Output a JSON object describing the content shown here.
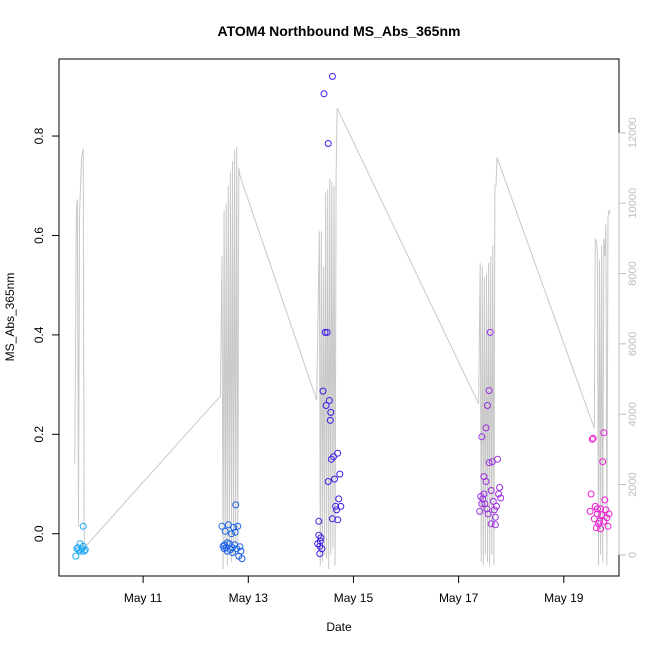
{
  "chart_data": {
    "type": "scatter",
    "title": "ATOM4 Northbound MS_Abs_365nm",
    "xlabel": "Date",
    "ylabel": "MS_Abs_365nm",
    "x_ticks": [
      "May 11",
      "May 13",
      "May 15",
      "May 17",
      "May 19"
    ],
    "x_tick_days": [
      11,
      13,
      15,
      17,
      19
    ],
    "xlim_days": [
      9.4,
      20.05
    ],
    "y_ticks": [
      "0.0",
      "0.2",
      "0.4",
      "0.6",
      "0.8"
    ],
    "y_tick_values": [
      0,
      0.2,
      0.4,
      0.6,
      0.8
    ],
    "ylim": [
      -0.085,
      0.955
    ],
    "y2_ticks": [
      "0",
      "2000",
      "4000",
      "6000",
      "8000",
      "10000",
      "12000"
    ],
    "y2_tick_values": [
      0,
      2000,
      4000,
      6000,
      8000,
      10000,
      12000
    ],
    "y2lim": [
      -600,
      14100
    ],
    "grid": false,
    "colors": {
      "series_1": "#1ea8f0",
      "series_2": "#1a62e8",
      "series_3": "#3c1ee6",
      "series_4": "#9a2ee0",
      "series_5": "#ee1ed2",
      "secondary_line": "#c8c8c8",
      "axis": "#000000",
      "secondary_axis": "#bdbdbd"
    },
    "series": [
      {
        "color_key": "series_1",
        "points": [
          [
            9.72,
            -0.045
          ],
          [
            9.74,
            -0.03
          ],
          [
            9.76,
            -0.028
          ],
          [
            9.78,
            -0.033
          ],
          [
            9.8,
            -0.02
          ],
          [
            9.82,
            -0.035
          ],
          [
            9.84,
            -0.03
          ],
          [
            9.86,
            0.015
          ],
          [
            9.86,
            -0.025
          ],
          [
            9.88,
            -0.035
          ],
          [
            9.9,
            -0.032
          ]
        ]
      },
      {
        "color_key": "series_2",
        "points": [
          [
            12.5,
            0.015
          ],
          [
            12.52,
            -0.025
          ],
          [
            12.54,
            -0.03
          ],
          [
            12.56,
            0.005
          ],
          [
            12.58,
            -0.028
          ],
          [
            12.6,
            -0.035
          ],
          [
            12.62,
            0.018
          ],
          [
            12.64,
            -0.02
          ],
          [
            12.66,
            -0.032
          ],
          [
            12.68,
            0.0
          ],
          [
            12.7,
            -0.038
          ],
          [
            12.72,
            0.013
          ],
          [
            12.74,
            -0.022
          ],
          [
            12.76,
            0.058
          ],
          [
            12.78,
            -0.03
          ],
          [
            12.8,
            0.015
          ],
          [
            12.82,
            -0.045
          ],
          [
            12.84,
            -0.026
          ],
          [
            12.86,
            -0.035
          ],
          [
            12.88,
            -0.05
          ],
          [
            12.55,
            -0.022
          ],
          [
            12.6,
            -0.018
          ],
          [
            12.7,
            -0.028
          ],
          [
            12.75,
            0.003
          ]
        ]
      },
      {
        "color_key": "series_3",
        "points": [
          [
            14.32,
            -0.02
          ],
          [
            14.34,
            0.025
          ],
          [
            14.36,
            -0.04
          ],
          [
            14.37,
            -0.015
          ],
          [
            14.38,
            -0.008
          ],
          [
            14.4,
            -0.03
          ],
          [
            14.42,
            0.287
          ],
          [
            14.44,
            0.885
          ],
          [
            14.46,
            0.405
          ],
          [
            14.48,
            0.258
          ],
          [
            14.5,
            0.405
          ],
          [
            14.52,
            0.785
          ],
          [
            14.52,
            0.105
          ],
          [
            14.54,
            0.268
          ],
          [
            14.56,
            0.228
          ],
          [
            14.57,
            0.244
          ],
          [
            14.58,
            0.15
          ],
          [
            14.6,
            0.92
          ],
          [
            14.6,
            0.03
          ],
          [
            14.62,
            0.155
          ],
          [
            14.64,
            0.11
          ],
          [
            14.66,
            0.055
          ],
          [
            14.68,
            0.048
          ],
          [
            14.7,
            0.162
          ],
          [
            14.72,
            0.07
          ],
          [
            14.74,
            0.12
          ],
          [
            14.76,
            0.055
          ],
          [
            14.7,
            0.028
          ],
          [
            14.34,
            -0.003
          ],
          [
            14.36,
            -0.025
          ]
        ]
      },
      {
        "color_key": "series_4",
        "points": [
          [
            17.4,
            0.045
          ],
          [
            17.42,
            0.075
          ],
          [
            17.44,
            0.195
          ],
          [
            17.46,
            0.07
          ],
          [
            17.48,
            0.115
          ],
          [
            17.5,
            0.06
          ],
          [
            17.52,
            0.213
          ],
          [
            17.54,
            0.05
          ],
          [
            17.56,
            0.04
          ],
          [
            17.58,
            0.143
          ],
          [
            17.6,
            0.405
          ],
          [
            17.62,
            0.087
          ],
          [
            17.64,
            0.145
          ],
          [
            17.66,
            0.065
          ],
          [
            17.68,
            0.048
          ],
          [
            17.7,
            0.033
          ],
          [
            17.72,
            0.055
          ],
          [
            17.74,
            0.15
          ],
          [
            17.76,
            0.08
          ],
          [
            17.78,
            0.093
          ],
          [
            17.8,
            0.072
          ],
          [
            17.55,
            0.258
          ],
          [
            17.58,
            0.288
          ],
          [
            17.62,
            0.02
          ],
          [
            17.48,
            0.08
          ],
          [
            17.44,
            0.06
          ],
          [
            17.7,
            0.018
          ],
          [
            17.52,
            0.105
          ]
        ]
      },
      {
        "color_key": "series_5",
        "points": [
          [
            19.5,
            0.045
          ],
          [
            19.52,
            0.08
          ],
          [
            19.54,
            0.19
          ],
          [
            19.56,
            0.192
          ],
          [
            19.58,
            0.03
          ],
          [
            19.6,
            0.055
          ],
          [
            19.62,
            0.012
          ],
          [
            19.64,
            0.04
          ],
          [
            19.66,
            0.02
          ],
          [
            19.68,
            0.025
          ],
          [
            19.7,
            0.05
          ],
          [
            19.72,
            0.038
          ],
          [
            19.74,
            0.145
          ],
          [
            19.76,
            0.203
          ],
          [
            19.78,
            0.068
          ],
          [
            19.8,
            0.048
          ],
          [
            19.82,
            0.032
          ],
          [
            19.84,
            0.015
          ],
          [
            19.86,
            0.04
          ],
          [
            19.7,
            0.01
          ],
          [
            19.64,
            0.05
          ],
          [
            19.76,
            0.025
          ]
        ]
      }
    ],
    "secondary_series": {
      "name": "",
      "axis": "right",
      "points": [
        [
          9.7,
          2600
        ],
        [
          9.73,
          9800
        ],
        [
          9.75,
          10100
        ],
        [
          9.77,
          800
        ],
        [
          9.79,
          9700
        ],
        [
          9.83,
          11300
        ],
        [
          9.86,
          11550
        ],
        [
          9.88,
          200
        ],
        [
          12.4,
          4400
        ],
        [
          12.47,
          4500
        ],
        [
          12.5,
          8500
        ],
        [
          12.52,
          -400
        ],
        [
          12.54,
          9800
        ],
        [
          12.56,
          0
        ],
        [
          12.58,
          10000
        ],
        [
          12.6,
          -300
        ],
        [
          12.62,
          10500
        ],
        [
          12.64,
          200
        ],
        [
          12.66,
          10900
        ],
        [
          12.68,
          -200
        ],
        [
          12.7,
          11200
        ],
        [
          12.72,
          0
        ],
        [
          12.74,
          11500
        ],
        [
          12.76,
          300
        ],
        [
          12.78,
          11600
        ],
        [
          12.8,
          0
        ],
        [
          12.82,
          11000
        ],
        [
          12.84,
          10800
        ],
        [
          12.86,
          10700
        ],
        [
          14.3,
          4400
        ],
        [
          14.35,
          9200
        ],
        [
          14.37,
          -300
        ],
        [
          14.39,
          9200
        ],
        [
          14.41,
          -200
        ],
        [
          14.43,
          8200
        ],
        [
          14.45,
          0
        ],
        [
          14.47,
          10300
        ],
        [
          14.49,
          -100
        ],
        [
          14.51,
          10400
        ],
        [
          14.53,
          -400
        ],
        [
          14.55,
          10700
        ],
        [
          14.57,
          0
        ],
        [
          14.59,
          10600
        ],
        [
          14.61,
          200
        ],
        [
          14.63,
          10500
        ],
        [
          14.65,
          -300
        ],
        [
          14.67,
          10800
        ],
        [
          14.69,
          12700
        ],
        [
          17.38,
          4300
        ],
        [
          17.41,
          8300
        ],
        [
          17.43,
          -200
        ],
        [
          17.45,
          8200
        ],
        [
          17.47,
          -300
        ],
        [
          17.49,
          7900
        ],
        [
          17.51,
          0
        ],
        [
          17.53,
          8000
        ],
        [
          17.55,
          -200
        ],
        [
          17.57,
          8300
        ],
        [
          17.59,
          -300
        ],
        [
          17.61,
          8500
        ],
        [
          17.63,
          0
        ],
        [
          17.65,
          8800
        ],
        [
          17.67,
          -300
        ],
        [
          17.69,
          10500
        ],
        [
          17.71,
          10500
        ],
        [
          17.73,
          11300
        ],
        [
          19.58,
          3600
        ],
        [
          19.6,
          9000
        ],
        [
          19.62,
          8900
        ],
        [
          19.64,
          8600
        ],
        [
          19.66,
          -300
        ],
        [
          19.68,
          8400
        ],
        [
          19.7,
          0
        ],
        [
          19.72,
          8800
        ],
        [
          19.74,
          -200
        ],
        [
          19.76,
          9000
        ],
        [
          19.78,
          8500
        ],
        [
          19.8,
          9400
        ],
        [
          19.82,
          -300
        ],
        [
          19.84,
          9600
        ],
        [
          19.86,
          9800
        ],
        [
          19.88,
          9700
        ]
      ]
    }
  }
}
